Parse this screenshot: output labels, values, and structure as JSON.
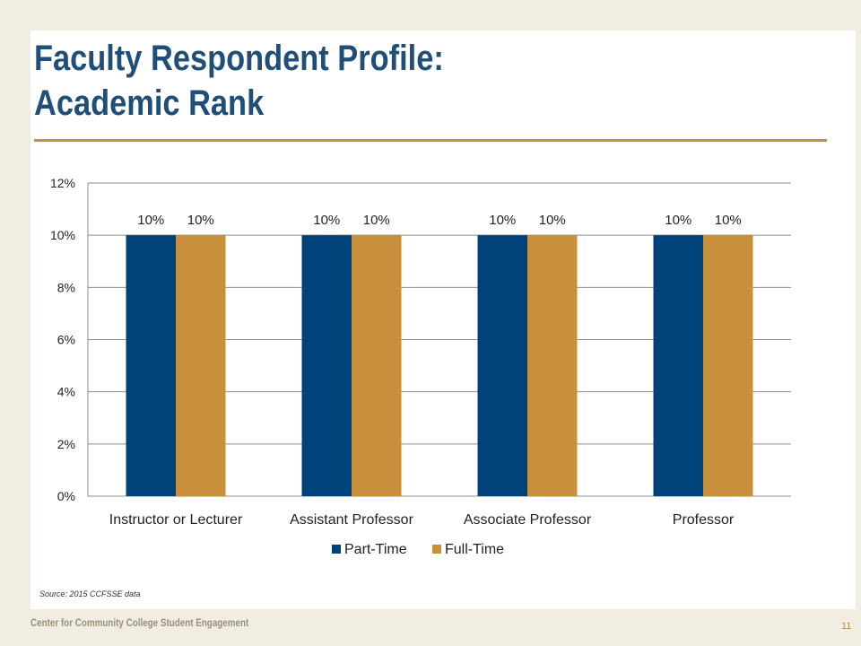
{
  "slide": {
    "title_line1": "Faculty Respondent Profile:",
    "title_line2": "Academic Rank",
    "source": "Source: 2015 CCFSSE data",
    "footer_org": "Center for Community College Student Engagement",
    "page_number": "11",
    "accent_color": "#c8903c",
    "title_color": "#1f4e79"
  },
  "chart_data": {
    "type": "bar",
    "title": "",
    "xlabel": "",
    "ylabel": "",
    "categories": [
      "Instructor or Lecturer",
      "Assistant Professor",
      "Associate Professor",
      "Professor"
    ],
    "series": [
      {
        "name": "Part-Time",
        "values": [
          10,
          10,
          10,
          10
        ],
        "labels": [
          "10%",
          "10%",
          "10%",
          "10%"
        ],
        "color": "#00427a"
      },
      {
        "name": "Full-Time",
        "values": [
          10,
          10,
          10,
          10
        ],
        "labels": [
          "10%",
          "10%",
          "10%",
          "10%"
        ],
        "color": "#c8903c"
      }
    ],
    "ylim": [
      0,
      12
    ],
    "yticks": [
      0,
      2,
      4,
      6,
      8,
      10,
      12
    ],
    "ytick_labels": [
      "0%",
      "2%",
      "4%",
      "6%",
      "8%",
      "10%",
      "12%"
    ],
    "grid": true,
    "legend_position": "bottom"
  }
}
